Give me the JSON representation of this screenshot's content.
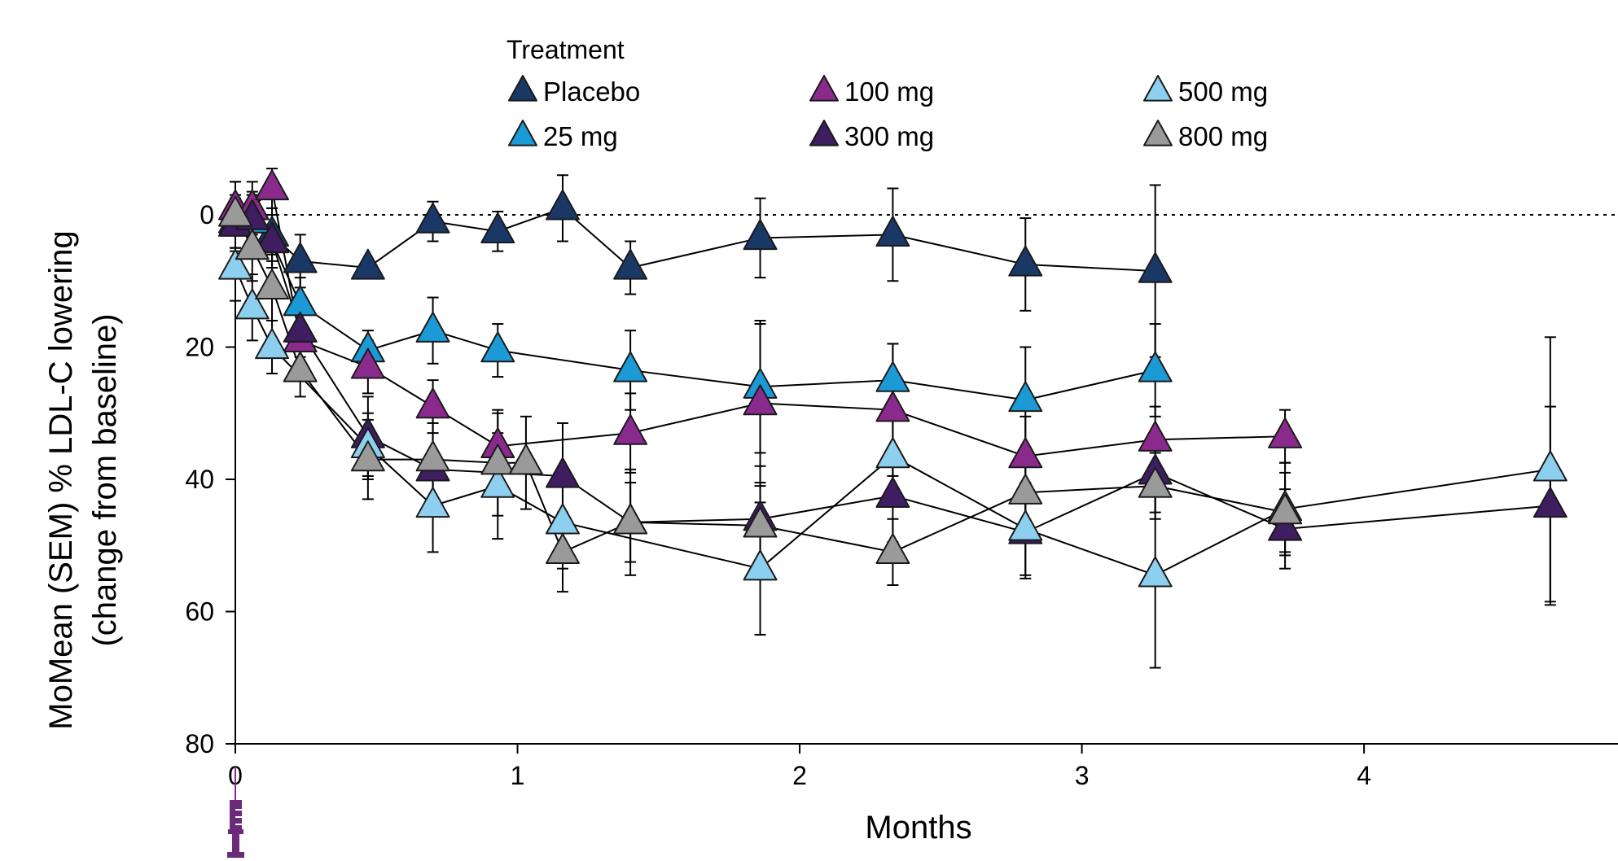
{
  "chart_data": {
    "type": "line",
    "title": "",
    "xlabel": "Months",
    "ylabel_lines": [
      "MoMean (SEM) % LDL-C lowering",
      "(change from baseline)"
    ],
    "xlim": [
      0,
      4.9
    ],
    "ylim": [
      80,
      -5
    ],
    "y_inverted": true,
    "x_ticks": [
      0,
      1,
      2,
      3,
      4
    ],
    "y_ticks": [
      0,
      20,
      40,
      60,
      80
    ],
    "reference_line": {
      "y": 0,
      "style": "dotted"
    },
    "grid": false,
    "legend": {
      "title": "Treatment",
      "placement": "top"
    },
    "annotation_icon": "syringe-icon",
    "series": [
      {
        "name": "Placebo",
        "color": "#1a3866",
        "x": [
          0.0,
          0.06,
          0.13,
          0.23,
          0.47,
          0.7,
          0.93,
          1.16,
          1.4,
          1.86,
          2.33,
          2.8,
          3.26
        ],
        "y": [
          1,
          1,
          3,
          7,
          8,
          1,
          2.5,
          -1,
          8,
          3.5,
          3,
          7.5,
          8.5
        ],
        "err": [
          4,
          4,
          4,
          4,
          0,
          3,
          3,
          5,
          4,
          6,
          7,
          7,
          13
        ]
      },
      {
        "name": "25 mg",
        "color": "#1b9ad6",
        "x": [
          0.0,
          0.06,
          0.13,
          0.23,
          0.47,
          0.7,
          0.93,
          1.4,
          1.86,
          2.33,
          2.8,
          3.26
        ],
        "y": [
          1,
          1,
          4,
          13.5,
          20.5,
          17.5,
          20.5,
          23.5,
          26,
          25,
          28,
          23.5
        ],
        "err": [
          4,
          4,
          4,
          4,
          3,
          5,
          4,
          6,
          10,
          5.5,
          8,
          7
        ]
      },
      {
        "name": "100 mg",
        "color": "#8a2a8c",
        "x": [
          0.0,
          0.06,
          0.13,
          0.23,
          0.47,
          0.7,
          0.93,
          1.4,
          1.86,
          2.33,
          2.8,
          3.26,
          3.72
        ],
        "y": [
          -1,
          -1,
          -4,
          19,
          23,
          29,
          35,
          33,
          28.5,
          29.5,
          36.5,
          34,
          33.5
        ],
        "err": [
          4,
          4,
          3,
          4,
          4,
          4,
          5,
          6,
          12,
          10,
          6,
          5,
          4
        ]
      },
      {
        "name": "300 mg",
        "color": "#3e1d60",
        "x": [
          0.0,
          0.06,
          0.13,
          0.23,
          0.47,
          0.7,
          1.16,
          1.4,
          1.86,
          2.33,
          2.8,
          3.26,
          3.72,
          4.66
        ],
        "y": [
          1.5,
          0.5,
          4,
          17.5,
          33.5,
          38.5,
          39.5,
          46.5,
          46,
          42.5,
          48,
          39,
          47.5,
          44
        ],
        "err": [
          4,
          4,
          4,
          4,
          6,
          7,
          8,
          8,
          8,
          7,
          7,
          6,
          6,
          15
        ]
      },
      {
        "name": "500 mg",
        "color": "#8dcfef",
        "x": [
          0.0,
          0.06,
          0.13,
          0.47,
          0.7,
          0.93,
          1.16,
          1.86,
          2.33,
          2.8,
          3.26,
          3.72,
          4.66
        ],
        "y": [
          8,
          14,
          20,
          35,
          44,
          41,
          46.5,
          53.5,
          36.5,
          47.5,
          54.5,
          44.5,
          38.5
        ],
        "err": [
          5,
          5,
          4,
          5,
          7,
          8,
          7,
          10,
          7,
          7,
          14,
          7,
          20
        ]
      },
      {
        "name": "800 mg",
        "color": "#9a9a9a",
        "x": [
          0.0,
          0.06,
          0.13,
          0.23,
          0.47,
          0.7,
          0.93,
          1.03,
          1.16,
          1.4,
          1.86,
          2.33,
          2.8,
          3.26,
          3.72
        ],
        "y": [
          0,
          5,
          11,
          23.5,
          37,
          37,
          37.5,
          37.5,
          51,
          46.5,
          47,
          51,
          42,
          41,
          45
        ],
        "err": [
          5,
          5,
          5,
          4,
          6,
          7,
          8,
          7,
          6,
          6,
          6,
          5,
          6,
          5,
          6
        ]
      }
    ]
  }
}
